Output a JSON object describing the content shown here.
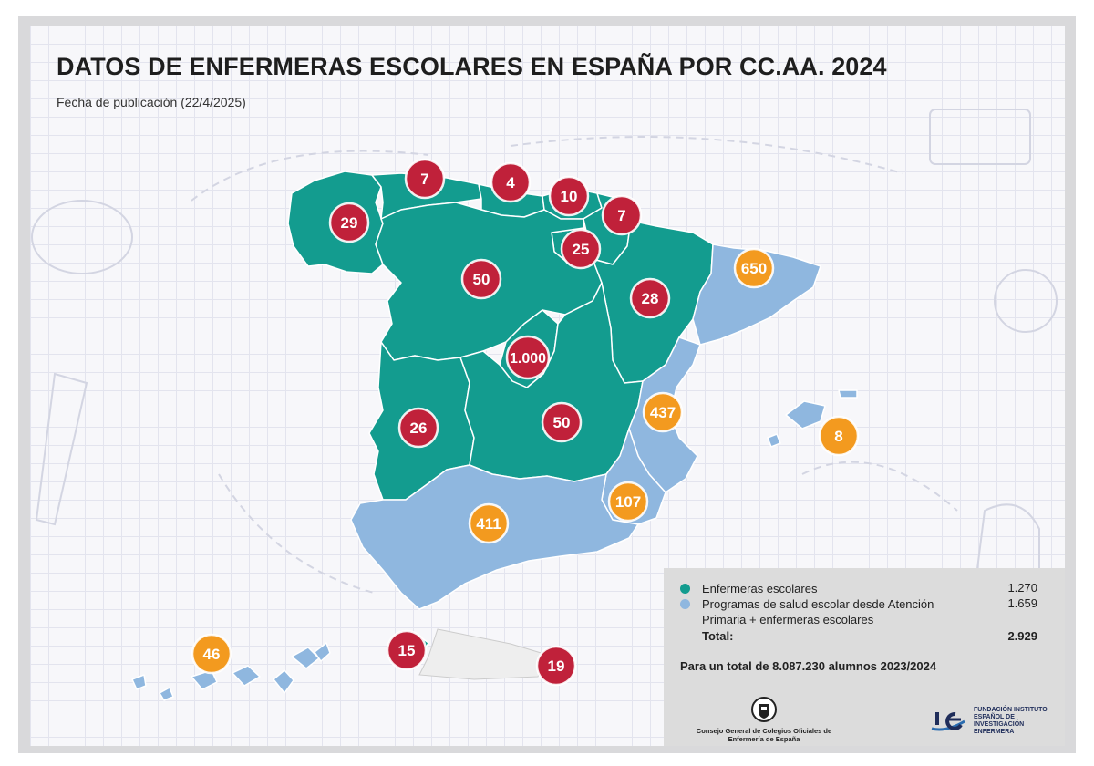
{
  "title": "DATOS DE ENFERMERAS ESCOLARES EN ESPAÑA POR CC.AA. 2024",
  "subtitle": "Fecha de publicación (22/4/2025)",
  "colors": {
    "enfermeras": "#139c8f",
    "programas": "#8fb7df",
    "marker_red": "#c0213a",
    "marker_orange": "#f39a1f",
    "legend_bg": "#dcdcdc"
  },
  "regions": [
    {
      "name": "Galicia",
      "value": "29",
      "category": "enfermeras"
    },
    {
      "name": "Asturias",
      "value": "7",
      "category": "enfermeras"
    },
    {
      "name": "Cantabria",
      "value": "4",
      "category": "enfermeras"
    },
    {
      "name": "País Vasco",
      "value": "10",
      "category": "enfermeras"
    },
    {
      "name": "Navarra",
      "value": "7",
      "category": "enfermeras"
    },
    {
      "name": "La Rioja",
      "value": "25",
      "category": "enfermeras"
    },
    {
      "name": "Castilla y León",
      "value": "50",
      "category": "enfermeras"
    },
    {
      "name": "Aragón",
      "value": "28",
      "category": "enfermeras"
    },
    {
      "name": "Cataluña",
      "value": "650",
      "category": "programas"
    },
    {
      "name": "Madrid",
      "value": "1.000",
      "category": "enfermeras"
    },
    {
      "name": "Extremadura",
      "value": "26",
      "category": "enfermeras"
    },
    {
      "name": "Castilla-La Mancha",
      "value": "50",
      "category": "enfermeras"
    },
    {
      "name": "C. Valenciana",
      "value": "437",
      "category": "programas"
    },
    {
      "name": "Baleares",
      "value": "8",
      "category": "programas"
    },
    {
      "name": "Murcia",
      "value": "107",
      "category": "programas"
    },
    {
      "name": "Andalucía",
      "value": "411",
      "category": "programas"
    },
    {
      "name": "Canarias",
      "value": "46",
      "category": "programas"
    },
    {
      "name": "Ceuta",
      "value": "15",
      "category": "enfermeras"
    },
    {
      "name": "Melilla",
      "value": "19",
      "category": "enfermeras"
    }
  ],
  "legend": {
    "items": [
      {
        "label": "Enfermeras escolares",
        "value": "1.270",
        "color": "#139c8f"
      },
      {
        "label": "Programas de salud escolar desde Atención Primaria + enfermeras escolares",
        "value": "1.659",
        "color": "#8fb7df"
      }
    ],
    "total_label": "Total:",
    "total_value": "2.929",
    "students": "Para un total de 8.087.230 alumnos 2023/2024"
  },
  "logos": {
    "consejo": "Consejo General de Colegios Oficiales de Enfermería de España",
    "fundacion": "FUNDACIÓN INSTITUTO ESPAÑOL DE INVESTIGACIÓN ENFERMERA",
    "consejo_icon": "crest-icon",
    "fundacion_icon": "ie-logo-icon"
  }
}
